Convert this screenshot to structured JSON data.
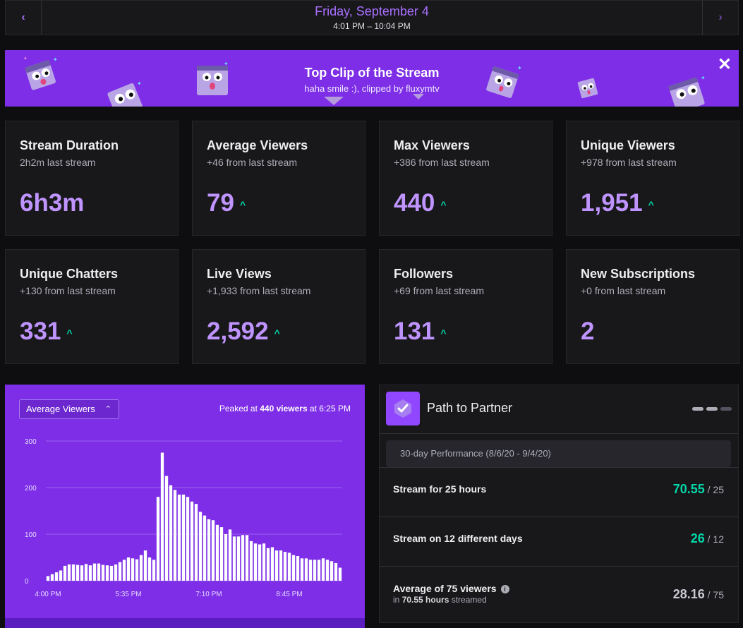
{
  "header": {
    "date": "Friday, September 4",
    "time_range": "4:01 PM – 10:04 PM",
    "prev_icon": "chevron-left-icon",
    "next_icon": "chevron-right-icon"
  },
  "banner": {
    "title": "Top Clip of the Stream",
    "subtitle": "haha smile :), clipped by fluxymtv",
    "close_icon": "close-icon"
  },
  "stats": [
    {
      "label": "Stream Duration",
      "delta": "2h2m last stream",
      "value": "6h3m",
      "trend": ""
    },
    {
      "label": "Average Viewers",
      "delta": "+46 from last stream",
      "value": "79",
      "trend": "^"
    },
    {
      "label": "Max Viewers",
      "delta": "+386 from last stream",
      "value": "440",
      "trend": "^"
    },
    {
      "label": "Unique Viewers",
      "delta": "+978 from last stream",
      "value": "1,951",
      "trend": "^"
    },
    {
      "label": "Unique Chatters",
      "delta": "+130 from last stream",
      "value": "331",
      "trend": "^"
    },
    {
      "label": "Live Views",
      "delta": "+1,933 from last stream",
      "value": "2,592",
      "trend": "^"
    },
    {
      "label": "Followers",
      "delta": "+69 from last stream",
      "value": "131",
      "trend": "^"
    },
    {
      "label": "New Subscriptions",
      "delta": "+0 from last stream",
      "value": "2",
      "trend": ""
    }
  ],
  "chart_panel": {
    "select_value": "Average Viewers",
    "peak_prefix": "Peaked at ",
    "peak_value": "440 viewers",
    "peak_suffix": " at 6:25 PM"
  },
  "chart_data": {
    "type": "bar",
    "ylim": [
      0,
      300
    ],
    "yticks": [
      0,
      100,
      200,
      300
    ],
    "xtick_labels": [
      "4:00 PM",
      "5:35 PM",
      "7:10 PM",
      "8:45 PM"
    ],
    "xtick_index": [
      0,
      19,
      38,
      57
    ],
    "colors": {
      "bar": "#ffffff",
      "grid": "#9b63f0",
      "tick": "#e6dcff"
    },
    "values": [
      10,
      14,
      18,
      22,
      32,
      35,
      35,
      34,
      33,
      36,
      33,
      37,
      37,
      34,
      33,
      32,
      35,
      40,
      45,
      50,
      48,
      46,
      55,
      65,
      50,
      45,
      180,
      275,
      225,
      205,
      195,
      185,
      185,
      180,
      170,
      165,
      148,
      140,
      132,
      130,
      120,
      115,
      100,
      110,
      95,
      95,
      98,
      98,
      85,
      80,
      78,
      80,
      70,
      72,
      65,
      65,
      62,
      60,
      55,
      53,
      48,
      48,
      45,
      45,
      45,
      48,
      45,
      42,
      38,
      28
    ]
  },
  "partner": {
    "title": "Path to Partner",
    "performance": "30-day Performance (8/6/20 - 9/4/20)",
    "rows": [
      {
        "label": "Stream for 25 hours",
        "value": "70.55",
        "of": " / 25"
      },
      {
        "label": "Stream on 12 different days",
        "value": "26",
        "of": " / 12"
      },
      {
        "label": "Average of 75 viewers",
        "value": "28.16",
        "of": " / 75",
        "sub_prefix": "in ",
        "sub_bold": "70.55 hours",
        "sub_suffix": " streamed"
      }
    ]
  }
}
